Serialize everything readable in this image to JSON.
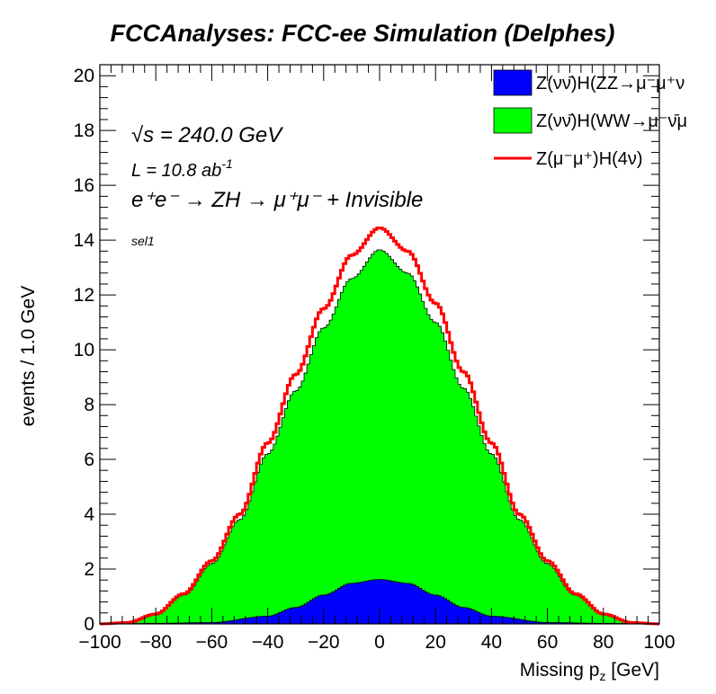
{
  "chart_data": {
    "type": "histogram",
    "title": "FCCAnalyses: FCC-ee Simulation (Delphes)",
    "xlabel": "Missing p_z [GeV]",
    "ylabel": "events / 1.0 GeV",
    "xlim": [
      -100,
      100
    ],
    "ylim": [
      0,
      20.4
    ],
    "x_ticks": [
      -100,
      -80,
      -60,
      -40,
      -20,
      0,
      20,
      40,
      60,
      80,
      100
    ],
    "y_ticks": [
      0,
      2,
      4,
      6,
      8,
      10,
      12,
      14,
      16,
      18,
      20
    ],
    "annotations": {
      "sqrt_s": "√s = 240.0 GeV",
      "lumi": "L = 10.8 ab",
      "lumi_sup": "-1",
      "process": "e⁺e⁻ → ZH → μ⁺μ⁻ + Invisible",
      "selection": "sel1"
    },
    "legend": {
      "position": "top-right",
      "entries": [
        {
          "label": "Z(νν̄)H(ZZ→μ⁻μ⁺ν",
          "color": "#0000ff",
          "style": "fill"
        },
        {
          "label": "Z(νν̄)H(WW→μ⁻ν̄μ",
          "color": "#00ff00",
          "style": "fill"
        },
        {
          "label": "Z(μ⁻μ⁺)H(4ν)",
          "color": "#ff0000",
          "style": "line"
        }
      ]
    },
    "series": [
      {
        "name": "Z(νν̄)H(ZZ→μ⁻μ⁺ν",
        "style": "stacked-fill",
        "color": "#0000ff",
        "points": [
          [
            -100,
            0
          ],
          [
            -80,
            0.02
          ],
          [
            -60,
            0.05
          ],
          [
            -40,
            0.28
          ],
          [
            -30,
            0.6
          ],
          [
            -20,
            1.05
          ],
          [
            -10,
            1.48
          ],
          [
            0,
            1.62
          ],
          [
            10,
            1.48
          ],
          [
            20,
            1.05
          ],
          [
            30,
            0.6
          ],
          [
            40,
            0.28
          ],
          [
            60,
            0.05
          ],
          [
            80,
            0.02
          ],
          [
            100,
            0
          ]
        ]
      },
      {
        "name": "Z(νν̄)H(WW→μ⁻ν̄μ",
        "style": "stacked-fill",
        "color": "#00ff00",
        "points": [
          [
            -100,
            0.0
          ],
          [
            -90,
            0.05
          ],
          [
            -80,
            0.35
          ],
          [
            -70,
            1.05
          ],
          [
            -60,
            2.2
          ],
          [
            -50,
            3.8
          ],
          [
            -40,
            6.2
          ],
          [
            -30,
            8.5
          ],
          [
            -20,
            10.8
          ],
          [
            -10,
            12.6
          ],
          [
            0,
            13.65
          ],
          [
            10,
            12.8
          ],
          [
            20,
            11.0
          ],
          [
            30,
            8.6
          ],
          [
            40,
            6.2
          ],
          [
            50,
            3.8
          ],
          [
            60,
            2.2
          ],
          [
            70,
            1.05
          ],
          [
            80,
            0.35
          ],
          [
            90,
            0.05
          ],
          [
            100,
            0.0
          ]
        ]
      },
      {
        "name": "Z(μ⁻μ⁺)H(4ν)",
        "style": "stacked-line",
        "color": "#ff0000",
        "points": [
          [
            -100,
            0.0
          ],
          [
            -90,
            0.05
          ],
          [
            -80,
            0.36
          ],
          [
            -70,
            1.1
          ],
          [
            -60,
            2.3
          ],
          [
            -50,
            4.0
          ],
          [
            -40,
            6.6
          ],
          [
            -30,
            9.1
          ],
          [
            -20,
            11.5
          ],
          [
            -10,
            13.45
          ],
          [
            0,
            14.45
          ],
          [
            10,
            13.6
          ],
          [
            20,
            11.7
          ],
          [
            30,
            9.2
          ],
          [
            40,
            6.6
          ],
          [
            50,
            4.0
          ],
          [
            60,
            2.3
          ],
          [
            70,
            1.1
          ],
          [
            80,
            0.36
          ],
          [
            90,
            0.05
          ],
          [
            100,
            0.0
          ]
        ]
      }
    ]
  }
}
